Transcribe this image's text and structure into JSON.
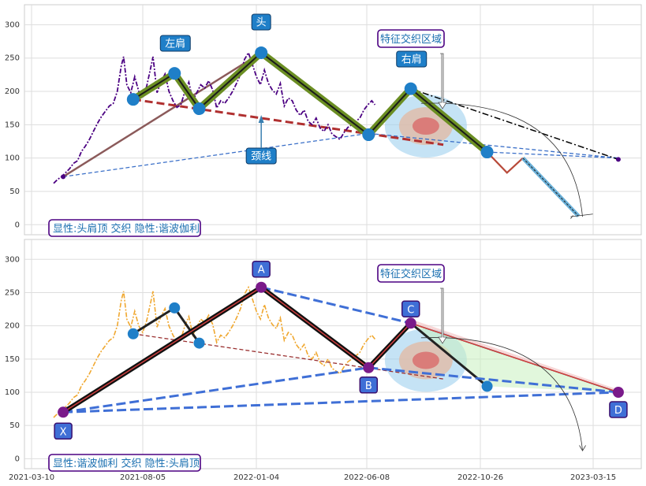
{
  "chart_data": [
    {
      "type": "line",
      "panel": "top",
      "ylim": [
        -15,
        330
      ],
      "yticks": [
        0,
        50,
        100,
        150,
        200,
        250,
        300
      ],
      "grid": true,
      "price_color": "#4b0082",
      "legend_text": "显性:头肩顶 交织 隐性:谐波伽利",
      "series": [
        {
          "values": [
            [
              0,
              62
            ],
            [
              5,
              68
            ],
            [
              10,
              72
            ],
            [
              15,
              78
            ],
            [
              20,
              84
            ],
            [
              25,
              92
            ],
            [
              30,
              96
            ],
            [
              35,
              110
            ],
            [
              40,
              118
            ],
            [
              45,
              128
            ],
            [
              50,
              140
            ],
            [
              55,
              152
            ],
            [
              60,
              162
            ],
            [
              65,
              170
            ],
            [
              70,
              178
            ],
            [
              75,
              182
            ],
            [
              80,
              200
            ],
            [
              85,
              238
            ],
            [
              88,
              252
            ],
            [
              92,
              210
            ],
            [
              97,
              198
            ],
            [
              102,
              222
            ],
            [
              107,
              200
            ],
            [
              112,
              190
            ],
            [
              117,
              208
            ],
            [
              122,
              235
            ],
            [
              125,
              252
            ],
            [
              130,
              198
            ],
            [
              135,
              214
            ],
            [
              140,
              226
            ],
            [
              145,
              200
            ],
            [
              150,
              186
            ],
            [
              155,
              176
            ],
            [
              160,
              180
            ],
            [
              165,
              200
            ],
            [
              170,
              214
            ],
            [
              175,
              186
            ],
            [
              180,
              198
            ],
            [
              185,
              210
            ],
            [
              190,
              205
            ],
            [
              195,
              216
            ],
            [
              200,
              202
            ],
            [
              205,
              175
            ],
            [
              210,
              186
            ],
            [
              215,
              182
            ],
            [
              220,
              190
            ],
            [
              225,
              200
            ],
            [
              230,
              212
            ],
            [
              235,
              226
            ],
            [
              240,
              248
            ],
            [
              245,
              258
            ],
            [
              250,
              240
            ],
            [
              255,
              222
            ],
            [
              260,
              210
            ],
            [
              265,
              232
            ],
            [
              270,
              212
            ],
            [
              275,
              202
            ],
            [
              280,
              196
            ],
            [
              285,
              212
            ],
            [
              290,
              178
            ],
            [
              295,
              190
            ],
            [
              300,
              186
            ],
            [
              305,
              172
            ],
            [
              310,
              164
            ],
            [
              315,
              172
            ],
            [
              320,
              155
            ],
            [
              325,
              150
            ],
            [
              330,
              160
            ],
            [
              335,
              145
            ],
            [
              340,
              140
            ],
            [
              345,
              150
            ],
            [
              350,
              136
            ],
            [
              355,
              132
            ],
            [
              360,
              128
            ],
            [
              365,
              138
            ],
            [
              370,
              146
            ],
            [
              375,
              150
            ],
            [
              380,
              155
            ],
            [
              385,
              160
            ],
            [
              390,
              172
            ],
            [
              395,
              180
            ],
            [
              400,
              186
            ],
            [
              404,
              180
            ]
          ]
        }
      ],
      "pattern_points": {
        "left_shoulder": [
          {
            "x": 100,
            "y": 188
          },
          {
            "x": 152,
            "y": 227
          }
        ],
        "head": [
          {
            "x": 183,
            "y": 174
          },
          {
            "x": 261,
            "y": 258
          }
        ],
        "neck": [
          {
            "x": 396,
            "y": 135
          }
        ],
        "right_shoulder": [
          {
            "x": 449,
            "y": 204
          },
          {
            "x": 545,
            "y": 109
          }
        ],
        "start": {
          "x": 12,
          "y": 72
        },
        "end": {
          "x": 710,
          "y": 98
        }
      },
      "annotations": [
        {
          "key": "head",
          "text": "头"
        },
        {
          "key": "left_shoulder",
          "text": "左肩"
        },
        {
          "key": "right_shoulder",
          "text": "右肩"
        },
        {
          "key": "neckline",
          "text": "颈线"
        },
        {
          "key": "zone",
          "text": "特征交织区域"
        }
      ]
    },
    {
      "type": "line",
      "panel": "bottom",
      "ylim": [
        -15,
        330
      ],
      "yticks": [
        0,
        50,
        100,
        150,
        200,
        250,
        300
      ],
      "x_ticklabels": [
        "2021-03-10",
        "2021-08-05",
        "2022-01-04",
        "2022-06-08",
        "2022-10-26",
        "2023-03-15"
      ],
      "grid": true,
      "price_color": "#f0a830",
      "legend_text": "显性:谐波伽利 交织 隐性:头肩顶",
      "harmonic_points": [
        {
          "label": "X",
          "x": 12,
          "y": 70
        },
        {
          "label": "A",
          "x": 261,
          "y": 258
        },
        {
          "label": "B",
          "x": 396,
          "y": 137
        },
        {
          "label": "C",
          "x": 449,
          "y": 204
        },
        {
          "label": "D",
          "x": 710,
          "y": 100
        }
      ],
      "annotations": [
        {
          "key": "zone",
          "text": "特征交织区域"
        }
      ]
    }
  ]
}
